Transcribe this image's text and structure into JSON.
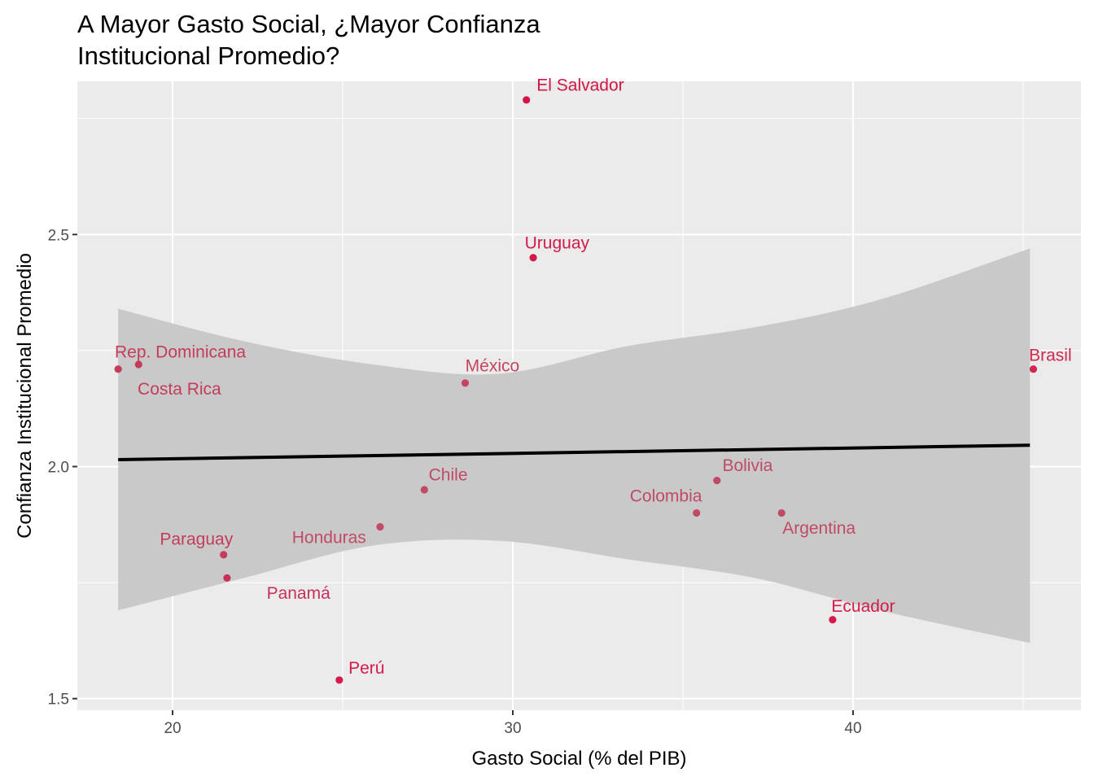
{
  "chart_data": {
    "type": "scatter",
    "title": "A Mayor Gasto Social, ¿Mayor Confianza\nInstitucional Promedio?",
    "xlabel": "Gasto Social (% del PIB)",
    "ylabel": "Confianza Institucional Promedio",
    "xlim": [
      17.2,
      46.7
    ],
    "ylim": [
      1.475,
      2.83
    ],
    "x_ticks": [
      20,
      30,
      40
    ],
    "y_ticks": [
      1.5,
      2.0,
      2.5
    ],
    "grid": true,
    "legend": "none",
    "colors": {
      "panel": "#EBEBEB",
      "grid": "#FFFFFF",
      "ribbon": "#C9C9C9",
      "trend": "#000000"
    },
    "trend": {
      "x": [
        18.4,
        45.2
      ],
      "y": [
        2.015,
        2.046
      ]
    },
    "ribbon": {
      "x": [
        18.4,
        22.1,
        25.9,
        29.6,
        33.4,
        37.1,
        40.8,
        45.2
      ],
      "upper": [
        2.34,
        2.27,
        2.22,
        2.2,
        2.26,
        2.3,
        2.36,
        2.47
      ],
      "lower": [
        1.69,
        1.76,
        1.83,
        1.84,
        1.8,
        1.76,
        1.69,
        1.62
      ]
    },
    "points": [
      {
        "label": "El Salvador",
        "x": 30.4,
        "y": 2.79,
        "color": "#D31446",
        "lx": 30.7,
        "ly": 2.81,
        "anchor": "start"
      },
      {
        "label": "Uruguay",
        "x": 30.6,
        "y": 2.45,
        "color": "#D41A4B",
        "lx": 31.3,
        "ly": 2.47,
        "anchor": "middle"
      },
      {
        "label": "Rep. Dominicana",
        "x": 19.0,
        "y": 2.22,
        "color": "#C43C5C",
        "lx": 18.3,
        "ly": 2.235,
        "anchor": "start"
      },
      {
        "label": "Costa Rica",
        "x": 18.4,
        "y": 2.21,
        "color": "#C43C5C",
        "lx": 20.2,
        "ly": 2.155,
        "anchor": "middle"
      },
      {
        "label": "México",
        "x": 28.6,
        "y": 2.18,
        "color": "#C54460",
        "lx": 29.4,
        "ly": 2.205,
        "anchor": "middle"
      },
      {
        "label": "Brasil",
        "x": 45.3,
        "y": 2.21,
        "color": "#D0294F",
        "lx": 45.8,
        "ly": 2.228,
        "anchor": "middle"
      },
      {
        "label": "Chile",
        "x": 27.4,
        "y": 1.95,
        "color": "#C04A66",
        "lx": 28.1,
        "ly": 1.97,
        "anchor": "middle"
      },
      {
        "label": "Bolivia",
        "x": 36.0,
        "y": 1.97,
        "color": "#C04A66",
        "lx": 36.9,
        "ly": 1.99,
        "anchor": "middle"
      },
      {
        "label": "Colombia",
        "x": 35.4,
        "y": 1.9,
        "color": "#C04A66",
        "lx": 34.5,
        "ly": 1.925,
        "anchor": "middle"
      },
      {
        "label": "Argentina",
        "x": 37.9,
        "y": 1.9,
        "color": "#C04A66",
        "lx": 39.0,
        "ly": 1.855,
        "anchor": "middle"
      },
      {
        "label": "Honduras",
        "x": 26.1,
        "y": 1.87,
        "color": "#C24A66",
        "lx": 24.6,
        "ly": 1.835,
        "anchor": "middle"
      },
      {
        "label": "Paraguay",
        "x": 21.5,
        "y": 1.81,
        "color": "#C43C5C",
        "lx": 20.7,
        "ly": 1.832,
        "anchor": "middle"
      },
      {
        "label": "Panamá",
        "x": 21.6,
        "y": 1.76,
        "color": "#C8305A",
        "lx": 23.7,
        "ly": 1.715,
        "anchor": "middle"
      },
      {
        "label": "Ecuador",
        "x": 39.4,
        "y": 1.67,
        "color": "#D41A4B",
        "lx": 40.3,
        "ly": 1.687,
        "anchor": "middle"
      },
      {
        "label": "Perú",
        "x": 24.9,
        "y": 1.54,
        "color": "#D41A4B",
        "lx": 25.7,
        "ly": 1.554,
        "anchor": "middle"
      }
    ]
  }
}
